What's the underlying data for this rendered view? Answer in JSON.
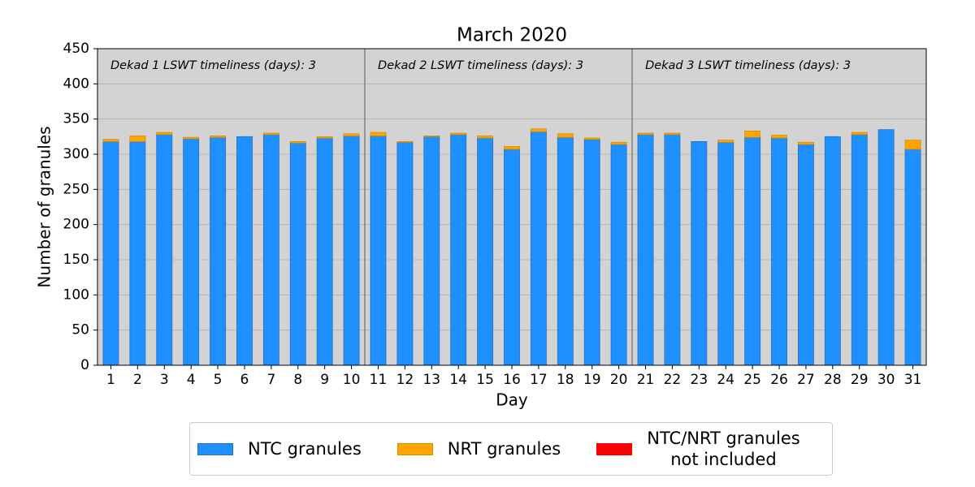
{
  "chart_data": {
    "type": "stacked_bar",
    "title": "March 2020",
    "x_label": "Day",
    "y_label": "Number of granules",
    "categories": [
      "1",
      "2",
      "3",
      "4",
      "5",
      "6",
      "7",
      "8",
      "9",
      "10",
      "11",
      "12",
      "13",
      "14",
      "15",
      "16",
      "17",
      "18",
      "19",
      "20",
      "21",
      "22",
      "23",
      "24",
      "25",
      "26",
      "27",
      "28",
      "29",
      "30",
      "31"
    ],
    "series": [
      {
        "name": "NTC granules",
        "color": "#1e90ff",
        "values": [
          318,
          318,
          328,
          322,
          324,
          325,
          328,
          316,
          323,
          326,
          326,
          317,
          325,
          328,
          323,
          307,
          332,
          324,
          321,
          314,
          328,
          328,
          318,
          317,
          324,
          323,
          314,
          325,
          328,
          335,
          307
        ]
      },
      {
        "name": "NRT granules",
        "color": "#ffa500",
        "values": [
          3,
          8,
          3,
          2,
          2,
          0,
          2,
          2,
          2,
          3,
          5,
          1,
          1,
          2,
          3,
          4,
          4,
          5,
          2,
          3,
          2,
          2,
          0,
          3,
          9,
          4,
          3,
          0,
          3,
          0,
          13
        ]
      },
      {
        "name": "NTC/NRT granules\nnot included",
        "color": "#ff0000",
        "values": [
          0,
          0,
          0,
          0,
          0,
          0,
          0,
          0,
          0,
          0,
          0,
          0,
          0,
          0,
          0,
          0,
          0,
          0,
          0,
          0,
          0,
          0,
          0,
          0,
          0,
          0,
          0,
          0,
          0,
          0,
          0
        ]
      }
    ],
    "annotations": [
      "Dekad 1 LSWT timeliness (days): 3",
      "Dekad 2 LSWT timeliness (days): 3",
      "Dekad 3 LSWT timeliness (days): 3"
    ],
    "ylim": [
      0,
      450
    ],
    "yticks": [
      0,
      50,
      100,
      150,
      200,
      250,
      300,
      350,
      400,
      450
    ],
    "grid": true
  }
}
